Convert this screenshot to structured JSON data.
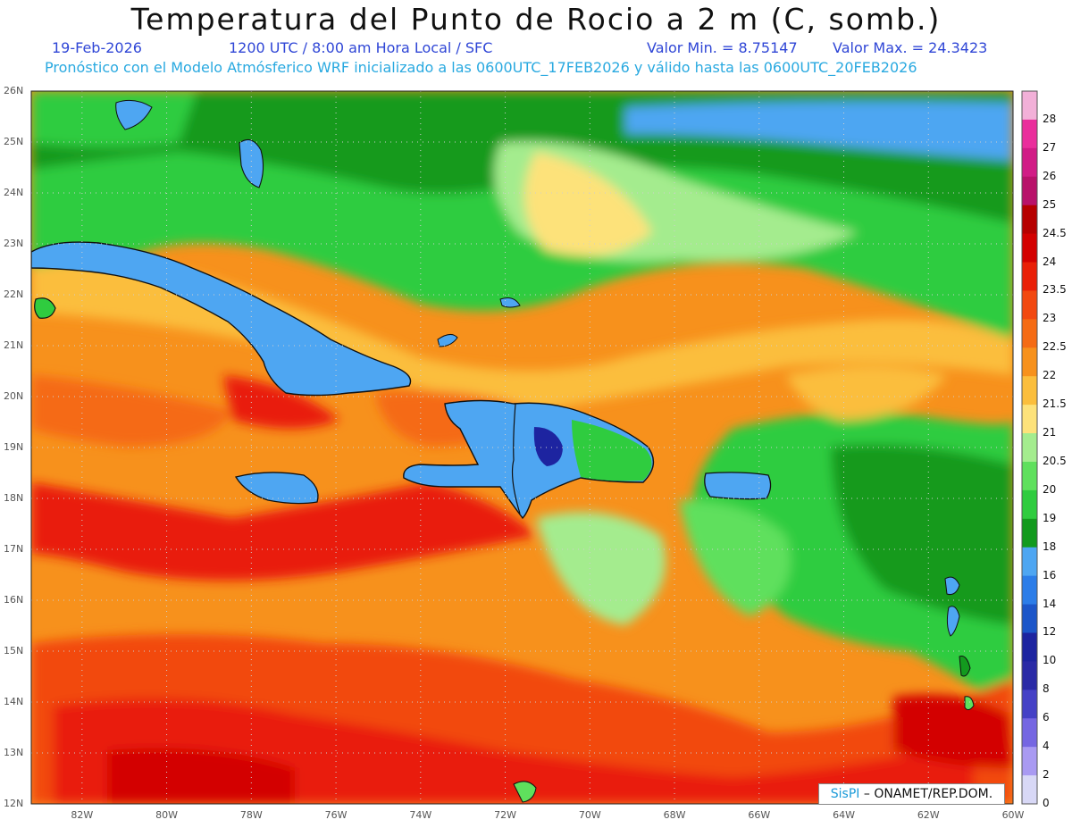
{
  "header": {
    "title": "Temperatura del Punto de Rocio a 2 m (C, somb.)",
    "date": "19-Feb-2026",
    "time": "1200 UTC / 8:00 am Hora Local / SFC",
    "min_label": "Valor Min. = 8.75147",
    "max_label": "Valor Max. = 24.3423",
    "model_info": "Pronóstico con el Modelo Atmósferico WRF inicializado a las 0600UTC_17FEB2026 y válido hasta las  0600UTC_20FEB2026"
  },
  "map": {
    "lat_labels": [
      "26N",
      "25N",
      "24N",
      "23N",
      "22N",
      "21N",
      "20N",
      "19N",
      "18N",
      "17N",
      "16N",
      "15N",
      "14N",
      "13N",
      "12N"
    ],
    "lon_labels": [
      "82W",
      "80W",
      "78W",
      "76W",
      "74W",
      "72W",
      "70W",
      "68W",
      "66W",
      "64W",
      "62W",
      "60W"
    ],
    "lon_range": [
      -83.2,
      -60.0
    ],
    "lat_range": [
      12.0,
      26.0
    ],
    "value_min": 8.75147,
    "value_max": 24.3423
  },
  "colorbar": {
    "levels": [
      {
        "label": "28",
        "color": "#f2b0d8"
      },
      {
        "label": "27",
        "color": "#ea2e9c"
      },
      {
        "label": "26",
        "color": "#d11c86"
      },
      {
        "label": "25",
        "color": "#b8126a"
      },
      {
        "label": "24.5",
        "color": "#b60000"
      },
      {
        "label": "24",
        "color": "#d30000"
      },
      {
        "label": "23.5",
        "color": "#e91f07"
      },
      {
        "label": "23",
        "color": "#f24810"
      },
      {
        "label": "22.5",
        "color": "#f56b14"
      },
      {
        "label": "22",
        "color": "#f7911c"
      },
      {
        "label": "21.5",
        "color": "#fbbe3c"
      },
      {
        "label": "21",
        "color": "#fde27a"
      },
      {
        "label": "20.5",
        "color": "#a4ec8e"
      },
      {
        "label": "20",
        "color": "#5fe05d"
      },
      {
        "label": "19",
        "color": "#2fcc3f"
      },
      {
        "label": "18",
        "color": "#139a1e"
      },
      {
        "label": "16",
        "color": "#4ea6f2"
      },
      {
        "label": "14",
        "color": "#2c7de8"
      },
      {
        "label": "12",
        "color": "#1c56c9"
      },
      {
        "label": "10",
        "color": "#1d24a0"
      },
      {
        "label": "8",
        "color": "#2a2aa6"
      },
      {
        "label": "6",
        "color": "#4541c6"
      },
      {
        "label": "4",
        "color": "#7566e2"
      },
      {
        "label": "2",
        "color": "#a99af2"
      },
      {
        "label": "0",
        "color": "#d8d8f6"
      }
    ]
  },
  "credit": {
    "brand": "SisPI",
    "text": " – ONAMET/REP.DOM."
  }
}
